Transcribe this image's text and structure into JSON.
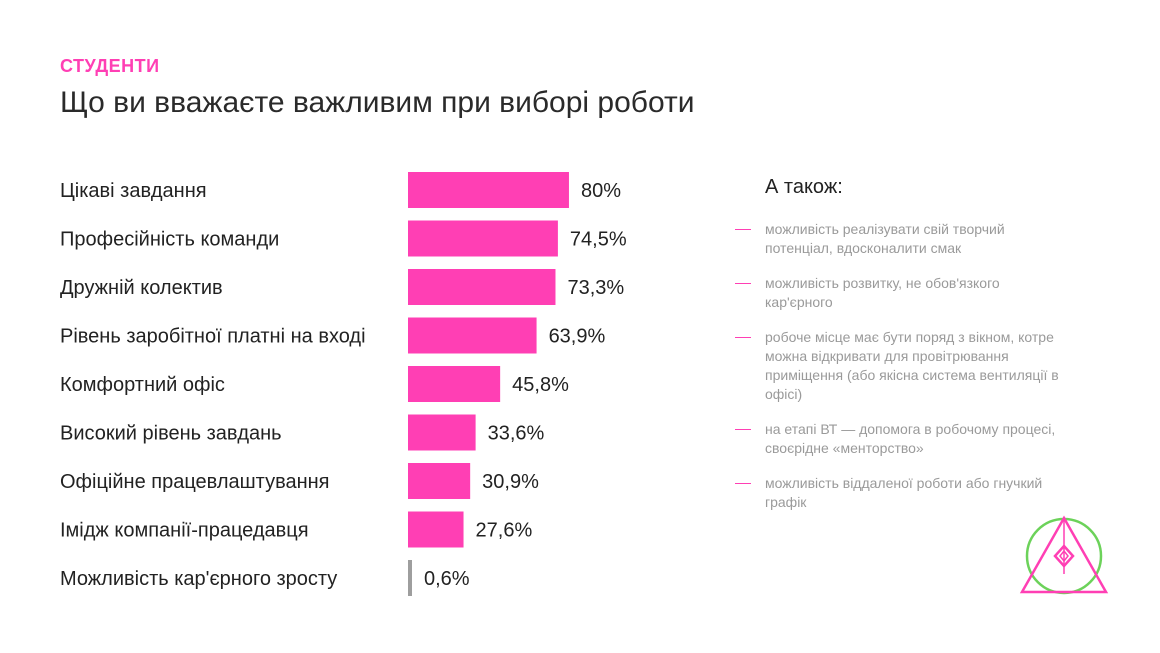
{
  "header": {
    "eyebrow": "СТУДЕНТИ",
    "title": "Що ви вважаєте важливим при виборі роботи"
  },
  "colors": {
    "accent": "#ff3fb4",
    "muted_bar": "#9e9e9e",
    "logo_green": "#6cd25a",
    "logo_pink": "#ff3fb4"
  },
  "also": {
    "heading": "А також:",
    "items": [
      "можливість реалізувати свій творчий потенціал, вдосконалити смак",
      "можливість розвитку, не обов'язкого кар'єрного",
      "робоче місце має бути поряд з вікном, котре можна відкривати для провітрювання приміщення (або якісна система вентиляції в офісі)",
      "на етапі ВТ — допомога в робочому процесі, своєрідне «менторство»",
      "можливість віддаленої роботи або гнучкий графік"
    ]
  },
  "logo": {
    "icon": "triangle-circle-diamond-logo-icon"
  },
  "chart_data": {
    "type": "bar",
    "orientation": "horizontal",
    "categories": [
      "Цікаві завдання",
      "Професійність команди",
      "Дружній колектив",
      "Рівень заробітної платні на вході",
      "Комфортний офіс",
      "Високий рівень завдань",
      "Офіційне працевлаштування",
      "Імідж компанії-працедавця",
      "Можливість кар'єрного зросту"
    ],
    "values": [
      80,
      74.5,
      73.3,
      63.9,
      45.8,
      33.6,
      30.9,
      27.6,
      0.6
    ],
    "value_labels": [
      "80%",
      "74,5%",
      "73,3%",
      "63,9%",
      "45,8%",
      "33,6%",
      "30,9%",
      "27,6%",
      "0,6%"
    ],
    "xlim": [
      0,
      100
    ],
    "grid": false,
    "legend": "none"
  }
}
